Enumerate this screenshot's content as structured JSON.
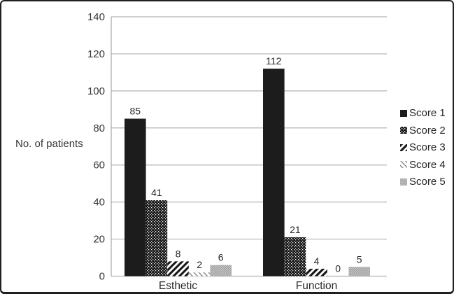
{
  "chart_data": {
    "type": "bar",
    "title": "",
    "xlabel": "",
    "ylabel": "No. of patients",
    "categories": [
      "Esthetic",
      "Function"
    ],
    "series": [
      {
        "name": "Score 1",
        "pattern": "solid-black",
        "values": [
          85,
          112
        ]
      },
      {
        "name": "Score 2",
        "pattern": "white-dots-on-black",
        "values": [
          41,
          21
        ]
      },
      {
        "name": "Score 3",
        "pattern": "black-diagonal-stripes-up",
        "values": [
          8,
          4
        ]
      },
      {
        "name": "Score 4",
        "pattern": "thin-gray-diagonal-stripes-down",
        "values": [
          2,
          0
        ]
      },
      {
        "name": "Score 5",
        "pattern": "gray-checker-dots",
        "values": [
          6,
          5
        ]
      }
    ],
    "ylim": [
      0,
      140
    ],
    "yticks": [
      0,
      20,
      40,
      60,
      80,
      100,
      120,
      140
    ],
    "grid": true,
    "data_labels": true,
    "legend_position": "right",
    "colors": {
      "bar_black": "#1c1c1c",
      "gridline": "#b3b3b3",
      "axis_line": "#a6a6a6",
      "text": "#363636",
      "background": "#ffffff",
      "border": "#1f1f1f"
    }
  }
}
